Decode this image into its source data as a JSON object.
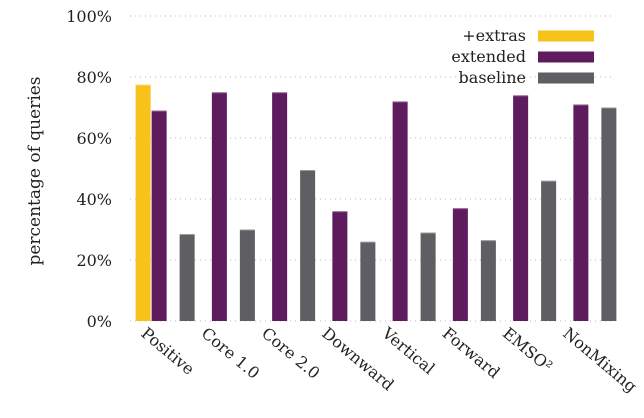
{
  "chart_data": {
    "type": "bar",
    "ylabel": "percentage of queries",
    "ylim": [
      0,
      100
    ],
    "yticks": [
      0,
      20,
      40,
      60,
      80,
      100
    ],
    "ytick_suffix": "%",
    "categories": [
      "Positive",
      "Core 1.0",
      "Core 2.0",
      "Downward",
      "Vertical",
      "Forward",
      "EMSO²",
      "NonMixing"
    ],
    "series": [
      {
        "name": "+extras",
        "color": "#f7c21a",
        "values": [
          77.5,
          null,
          null,
          null,
          null,
          null,
          null,
          null
        ]
      },
      {
        "name": "extended",
        "color": "#5e1b5e",
        "values": [
          69,
          75,
          75,
          36,
          72,
          37,
          74,
          71
        ]
      },
      {
        "name": "baseline",
        "color": "#5f5f63",
        "values": [
          28.5,
          30,
          49.5,
          26,
          29,
          26.5,
          46,
          70
        ]
      }
    ],
    "legend_position": "top-right",
    "grid": true
  }
}
